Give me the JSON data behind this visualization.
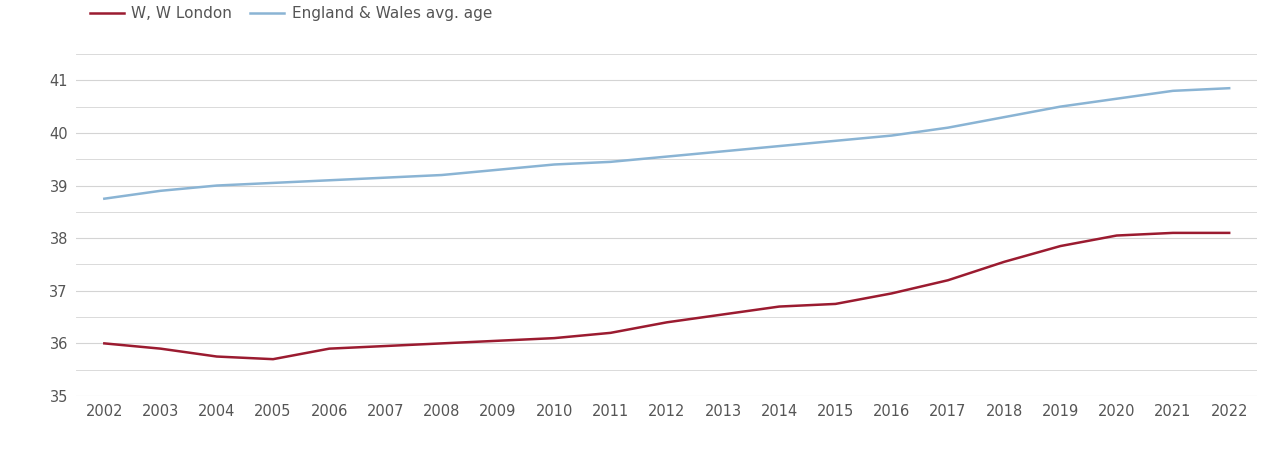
{
  "years": [
    2002,
    2003,
    2004,
    2005,
    2006,
    2007,
    2008,
    2009,
    2010,
    2011,
    2012,
    2013,
    2014,
    2015,
    2016,
    2017,
    2018,
    2019,
    2020,
    2021,
    2022
  ],
  "ww_london": [
    36.0,
    35.9,
    35.75,
    35.7,
    35.9,
    35.95,
    36.0,
    36.05,
    36.1,
    36.2,
    36.4,
    36.55,
    36.7,
    36.75,
    36.95,
    37.2,
    37.55,
    37.85,
    38.05,
    38.1,
    38.1
  ],
  "england_wales": [
    38.75,
    38.9,
    39.0,
    39.05,
    39.1,
    39.15,
    39.2,
    39.3,
    39.4,
    39.45,
    39.55,
    39.65,
    39.75,
    39.85,
    39.95,
    40.1,
    40.3,
    40.5,
    40.65,
    40.8,
    40.85
  ],
  "ww_london_color": "#9b1b30",
  "england_wales_color": "#8ab4d4",
  "ww_london_label": "W, W London",
  "england_wales_label": "England & Wales avg. age",
  "ylim": [
    35,
    41.5
  ],
  "yticks": [
    35,
    36,
    37,
    38,
    39,
    40,
    41
  ],
  "grid_color": "#d4d4d4",
  "background_color": "#ffffff",
  "line_width": 1.8,
  "tick_fontsize": 10.5,
  "legend_fontsize": 11
}
